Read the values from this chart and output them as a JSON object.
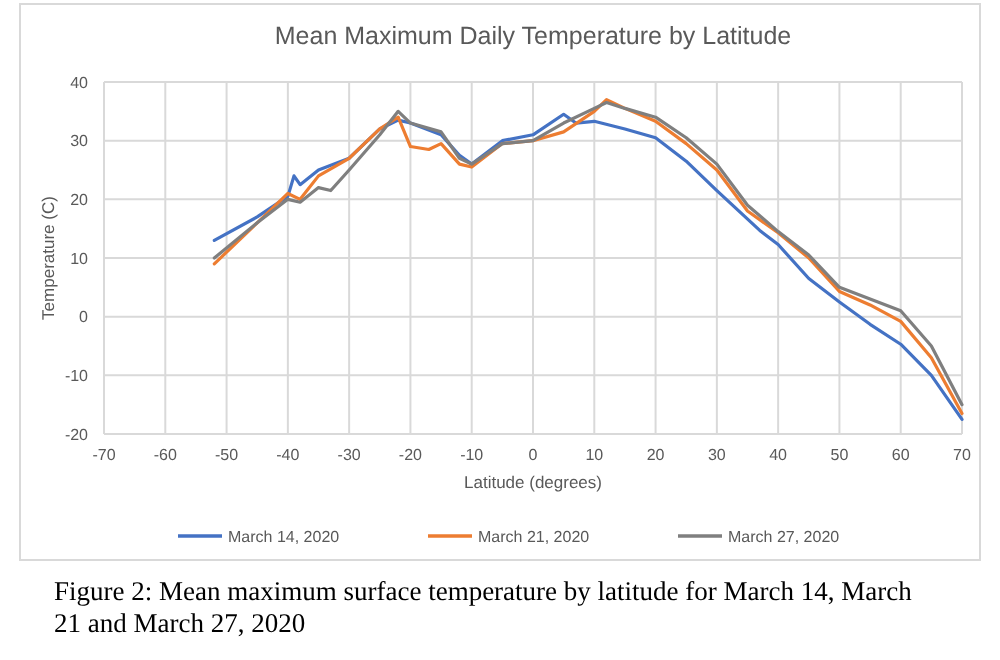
{
  "chart_data": {
    "type": "line",
    "title": "Mean Maximum Daily Temperature by Latitude",
    "xlabel": "Latitude (degrees)",
    "ylabel": "Temperature (C)",
    "xlim": [
      -70,
      70
    ],
    "xticks": [
      -70,
      -60,
      -50,
      -40,
      -30,
      -20,
      -10,
      0,
      10,
      20,
      30,
      40,
      50,
      60,
      70
    ],
    "ylim": [
      -20,
      40
    ],
    "yticks": [
      -20,
      -10,
      0,
      10,
      20,
      30,
      40
    ],
    "grid": true,
    "legend": "bottom",
    "marker": "none",
    "series": [
      {
        "name": "March 14, 2020",
        "color": "#4472c4",
        "x": [
          -52,
          -45,
          -40,
          -39,
          -38,
          -35,
          -30,
          -25,
          -22,
          -20,
          -15,
          -12,
          -10,
          -5,
          0,
          5,
          7,
          10,
          15,
          20,
          25,
          30,
          37,
          40,
          45,
          50,
          55,
          60,
          65,
          70
        ],
        "values": [
          13,
          17,
          20.5,
          24,
          22.5,
          25,
          27,
          32,
          33.5,
          33,
          31,
          27.5,
          26,
          30,
          31,
          34.5,
          33,
          33.3,
          32,
          30.5,
          26.5,
          21.5,
          14.7,
          12.3,
          6.5,
          2.5,
          -1.3,
          -4.7,
          -10,
          -17.5
        ]
      },
      {
        "name": "March 21, 2020",
        "color": "#ed7d31",
        "x": [
          -52,
          -45,
          -40,
          -38,
          -35,
          -30,
          -25,
          -22,
          -20,
          -17,
          -15,
          -12,
          -10,
          -5,
          0,
          5,
          10,
          12,
          15,
          20,
          25,
          30,
          35,
          40,
          45,
          50,
          55,
          60,
          65,
          70
        ],
        "values": [
          9,
          16,
          21,
          20,
          24,
          27,
          32,
          34,
          29,
          28.5,
          29.5,
          26,
          25.5,
          29.5,
          30,
          31.5,
          35,
          37,
          35.5,
          33.3,
          29.5,
          25,
          18,
          14.3,
          10,
          4.3,
          2,
          -0.8,
          -7,
          -16.5
        ]
      },
      {
        "name": "March 27, 2020",
        "color": "#7f7f7f",
        "x": [
          -52,
          -45,
          -40,
          -38,
          -35,
          -33,
          -30,
          -25,
          -22,
          -20,
          -15,
          -12,
          -10,
          -5,
          0,
          5,
          10,
          12,
          15,
          20,
          25,
          30,
          35,
          40,
          45,
          50,
          55,
          60,
          65,
          70
        ],
        "values": [
          10,
          16,
          20,
          19.5,
          22,
          21.5,
          25,
          31,
          35,
          33,
          31.5,
          27,
          26,
          29.5,
          30,
          33,
          35.5,
          36.5,
          35.5,
          34,
          30.5,
          26,
          19,
          14.5,
          10.5,
          5,
          3,
          1,
          -5,
          -15
        ]
      }
    ],
    "annotations": [
      "Figure 2: Mean maximum surface temperature by latitude for March 14, March 21 and March 27, 2020"
    ]
  }
}
